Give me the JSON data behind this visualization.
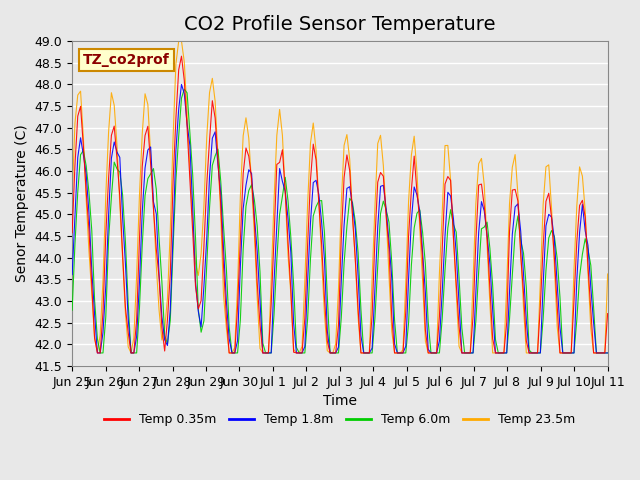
{
  "title": "CO2 Profile Sensor Temperature",
  "ylabel": "Senor Temperature (C)",
  "xlabel": "Time",
  "ylim": [
    41.5,
    49.0
  ],
  "annotation": "TZ_co2prof",
  "legend_labels": [
    "Temp 0.35m",
    "Temp 1.8m",
    "Temp 6.0m",
    "Temp 23.5m"
  ],
  "legend_colors": [
    "#ff0000",
    "#0000ff",
    "#00cc00",
    "#ffaa00"
  ],
  "line_colors": [
    "#ff0000",
    "#0000ff",
    "#00cc00",
    "#ffaa00"
  ],
  "background_color": "#e8e8e8",
  "plot_bg_color": "#e8e8e8",
  "xtick_labels": [
    "Jun 25",
    "Jun 26",
    "Jun 27",
    "Jun 28",
    "Jun 29",
    "Jun 30",
    "Jul 1",
    "Jul 2",
    "Jul 3",
    "Jul 4",
    "Jul 5",
    "Jul 6",
    "Jul 7",
    "Jul 8",
    "Jul 9",
    "Jul 10",
    "Jul 11"
  ],
  "grid_color": "#ffffff",
  "title_fontsize": 14,
  "axis_fontsize": 10,
  "tick_fontsize": 9
}
